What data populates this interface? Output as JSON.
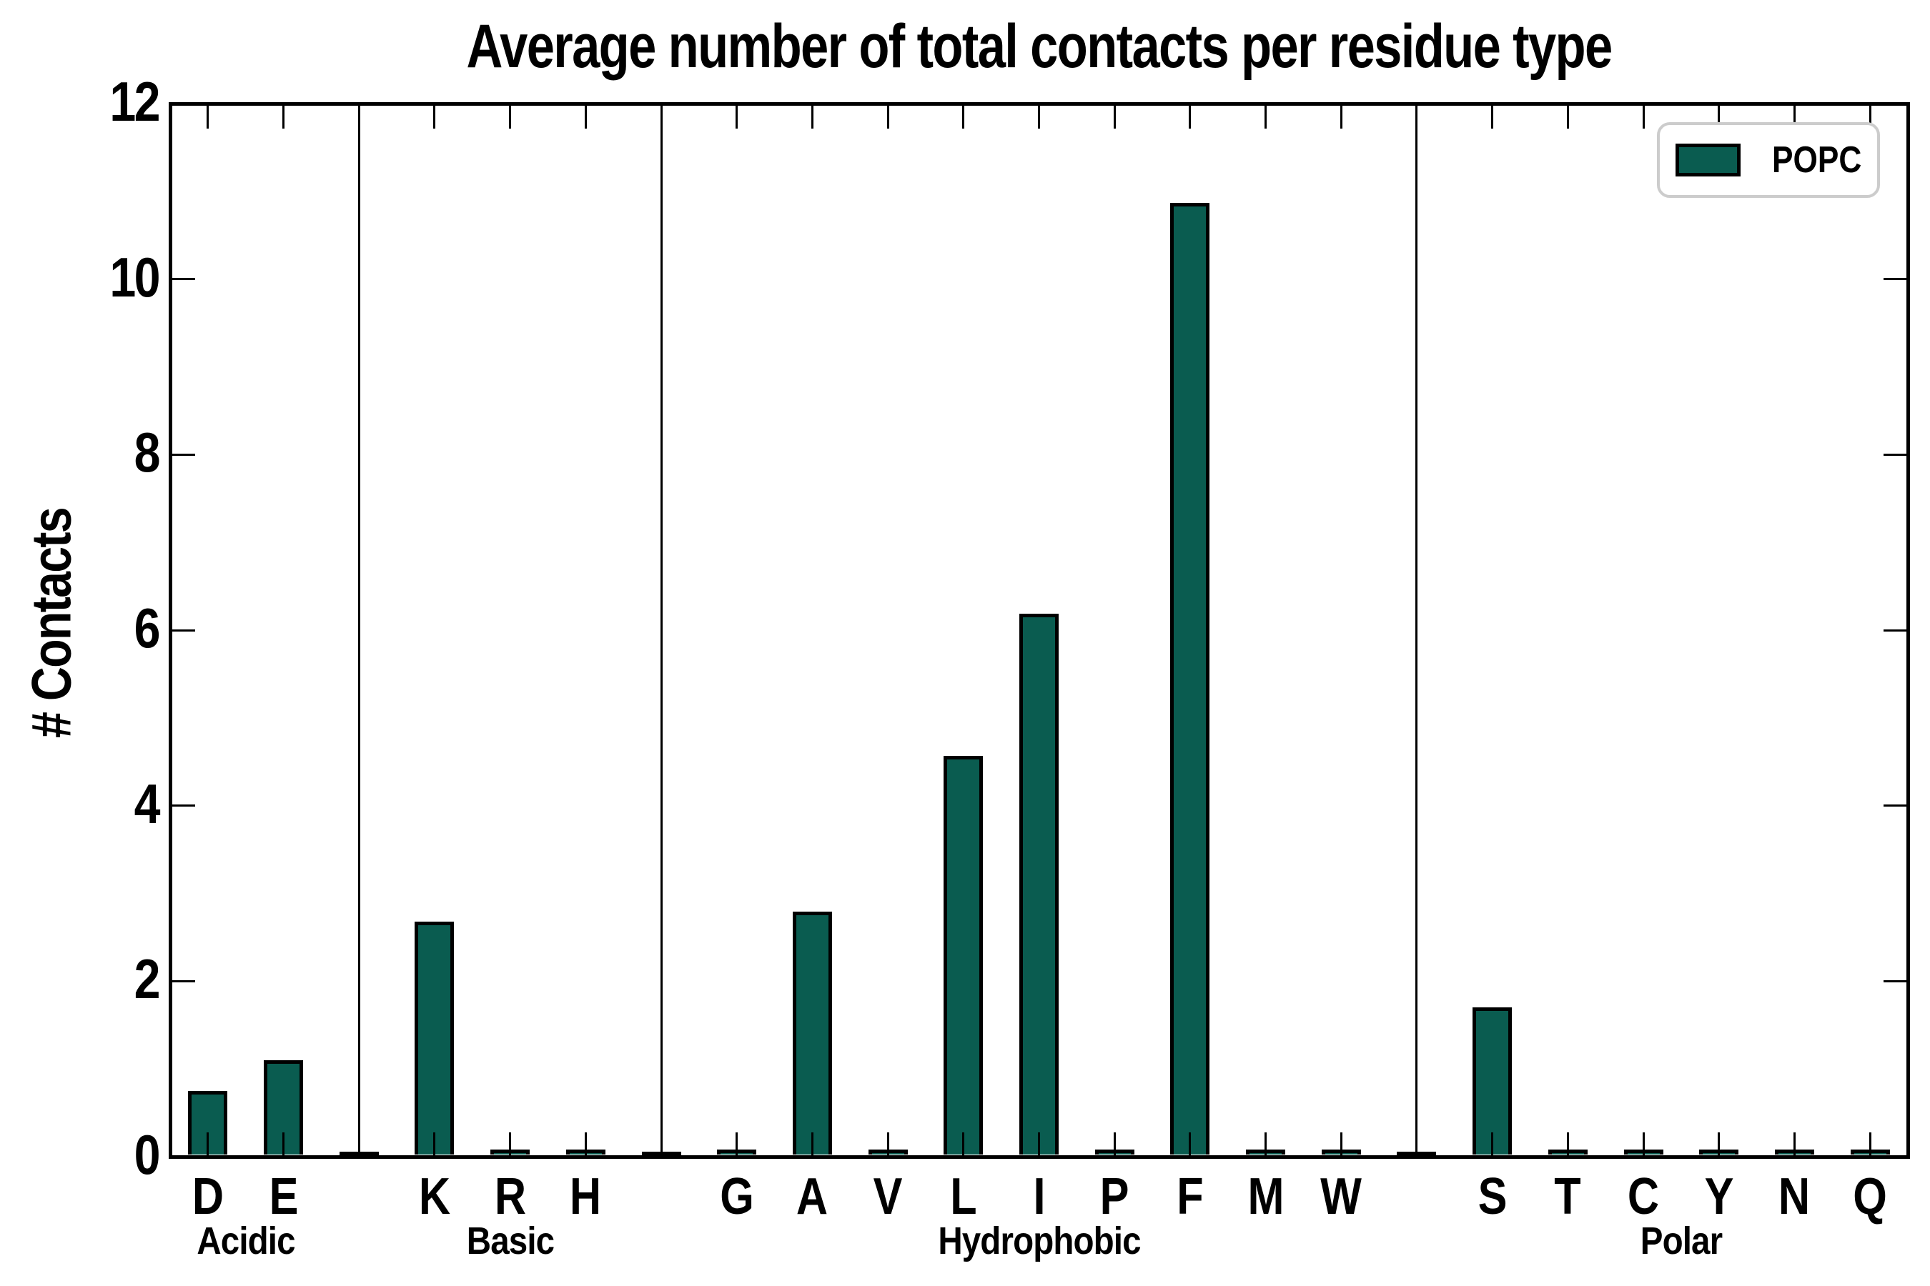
{
  "figure": {
    "title": "Average number of total contacts per residue type",
    "ylabel": "# Contacts",
    "background_color": "#ffffff"
  },
  "legend": {
    "label": "POPC",
    "swatch_color": "#0A5C50",
    "border_color": "#cccccc",
    "position": "upper right"
  },
  "colors": {
    "bar_fill": "#0A5C50",
    "bar_edge": "#000000",
    "axis": "#000000",
    "text": "#000000"
  },
  "chart_data": {
    "type": "bar",
    "title": "Average number of total contacts per residue type",
    "xlabel": "",
    "ylabel": "# Contacts",
    "ylim": [
      0,
      12
    ],
    "yticks": [
      0,
      2,
      4,
      6,
      8,
      10,
      12
    ],
    "ytick_labels": [
      "0",
      "2",
      "4",
      "6",
      "8",
      "10",
      "12"
    ],
    "grid": false,
    "legend_position": "upper right",
    "series_name": "POPC",
    "bar_color": "#0A5C50",
    "bar_edge_color": "#000000",
    "group_separator_lines": true,
    "groups": [
      {
        "label": "Acidic",
        "categories": [
          "D",
          "E"
        ],
        "values": [
          0.69,
          1.04
        ]
      },
      {
        "label": "Basic",
        "categories": [
          "K",
          "R",
          "H"
        ],
        "values": [
          2.62,
          0.02,
          0.02
        ]
      },
      {
        "label": "Hydrophobic",
        "categories": [
          "G",
          "A",
          "V",
          "L",
          "I",
          "P",
          "F",
          "M",
          "W"
        ],
        "values": [
          0.02,
          2.73,
          0.02,
          4.51,
          6.13,
          0.02,
          10.81,
          0.02,
          0.02
        ]
      },
      {
        "label": "Polar",
        "categories": [
          "S",
          "T",
          "C",
          "Y",
          "N",
          "Q"
        ],
        "values": [
          1.64,
          0.02,
          0.02,
          0.02,
          0.02,
          0.02
        ]
      }
    ]
  }
}
